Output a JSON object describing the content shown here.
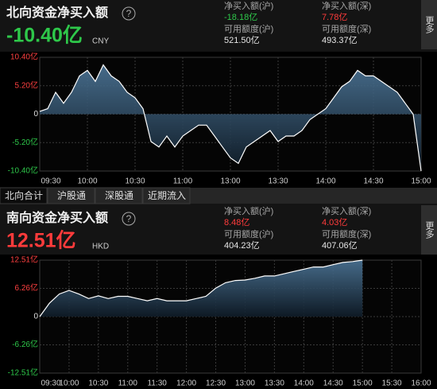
{
  "panels": [
    {
      "title": "北向资金净买入额",
      "help": "?",
      "value": "-10.40亿",
      "value_color": "#2ec84a",
      "unit": "CNY",
      "more": "更多",
      "stats": [
        {
          "label": "净买入额(沪)",
          "value": "-18.18亿",
          "color": "#2ec84a"
        },
        {
          "label": "净买入额(深)",
          "value": "7.78亿",
          "color": "#ff3b3b"
        },
        {
          "label": "可用额度(沪)",
          "value": "521.50亿",
          "color": "#e6e6e6"
        },
        {
          "label": "可用额度(深)",
          "value": "493.37亿",
          "color": "#e6e6e6"
        }
      ]
    },
    {
      "title": "南向资金净买入额",
      "help": "?",
      "value": "12.51亿",
      "value_color": "#ff3b3b",
      "unit": "HKD",
      "more": "更多",
      "stats": [
        {
          "label": "净买入额(沪)",
          "value": "8.48亿",
          "color": "#ff3b3b"
        },
        {
          "label": "净买入额(深)",
          "value": "4.03亿",
          "color": "#ff3b3b"
        },
        {
          "label": "可用额度(沪)",
          "value": "404.23亿",
          "color": "#e6e6e6"
        },
        {
          "label": "可用额度(深)",
          "value": "407.06亿",
          "color": "#e6e6e6"
        }
      ]
    }
  ],
  "tabs": [
    "北向合计",
    "沪股通",
    "深股通",
    "近期流入"
  ],
  "chart_data": [
    {
      "type": "line",
      "color": "#ffffff",
      "grid": true,
      "x": [
        "09:30",
        "09:35",
        "09:40",
        "09:45",
        "09:50",
        "09:55",
        "10:00",
        "10:05",
        "10:10",
        "10:15",
        "10:20",
        "10:25",
        "10:30",
        "10:35",
        "10:40",
        "10:45",
        "10:50",
        "10:55",
        "11:00",
        "11:05",
        "11:10",
        "11:15",
        "11:20",
        "11:25",
        "13:00",
        "13:05",
        "13:10",
        "13:15",
        "13:20",
        "13:25",
        "13:30",
        "13:35",
        "13:40",
        "13:45",
        "13:50",
        "13:55",
        "14:00",
        "14:05",
        "14:10",
        "14:15",
        "14:20",
        "14:25",
        "14:30",
        "14:35",
        "14:40",
        "14:45",
        "14:50",
        "14:55",
        "15:00"
      ],
      "values": [
        0.5,
        1,
        4,
        2,
        4,
        7,
        8,
        6,
        9,
        7,
        6,
        4,
        3,
        1,
        -5,
        -6,
        -4,
        -6,
        -4,
        -3,
        -2,
        -2,
        -4,
        -6,
        -8,
        -9,
        -6,
        -5,
        -4,
        -3,
        -5,
        -4,
        -4,
        -3,
        -1,
        0,
        1,
        3,
        5,
        6,
        8,
        7,
        7,
        6,
        5,
        4,
        2,
        0,
        -10.4
      ],
      "xticks": [
        "09:30",
        "10:00",
        "10:30",
        "11:00",
        "13:00",
        "13:30",
        "14:00",
        "14:30",
        "15:00"
      ],
      "ylim": [
        -10.4,
        10.4
      ],
      "yticks": [
        {
          "value": 10.4,
          "label": "10.40亿"
        },
        {
          "value": 5.2,
          "label": "5.20亿"
        },
        0,
        {
          "value": -5.2,
          "label": "-5.20亿"
        },
        {
          "value": -10.4,
          "label": "-10.40亿"
        }
      ]
    },
    {
      "type": "line",
      "color": "#ffffff",
      "grid": true,
      "x": [
        "09:30",
        "09:40",
        "09:50",
        "10:00",
        "10:10",
        "10:20",
        "10:30",
        "10:40",
        "10:50",
        "11:00",
        "11:10",
        "11:20",
        "11:30",
        "11:40",
        "11:50",
        "12:00",
        "12:10",
        "12:20",
        "12:30",
        "12:40",
        "12:50",
        "13:00",
        "13:10",
        "13:20",
        "13:30",
        "13:40",
        "13:50",
        "14:00",
        "14:10",
        "14:20",
        "14:30",
        "14:40",
        "14:50",
        "15:00",
        "15:10",
        "15:20",
        "15:30",
        "15:40",
        "15:50",
        "16:00"
      ],
      "values": [
        0,
        3,
        5,
        5.8,
        5,
        4,
        4.6,
        4,
        4.5,
        4.5,
        4,
        3.5,
        4,
        3.5,
        3.5,
        3.5,
        4,
        4.5,
        6.3,
        7.5,
        8,
        8.1,
        8.5,
        9,
        9,
        9.5,
        10,
        10.5,
        11,
        11,
        11.5,
        12,
        12.2,
        12.51,
        null,
        null,
        null,
        null,
        null,
        null
      ],
      "xticks": [
        "09:30",
        "10:00",
        "10:30",
        "11:00",
        "11:30",
        "12:00",
        "12:30",
        "13:00",
        "13:30",
        "14:00",
        "14:30",
        "15:00",
        "15:30",
        "16:00"
      ],
      "ylim": [
        -12.51,
        12.51
      ],
      "yticks": [
        {
          "value": 12.51,
          "label": "12.51亿"
        },
        {
          "value": 6.26,
          "label": "6.26亿"
        },
        0,
        {
          "value": -6.26,
          "label": "-6.26亿"
        },
        {
          "value": -12.51,
          "label": "-12.51亿"
        }
      ]
    }
  ]
}
